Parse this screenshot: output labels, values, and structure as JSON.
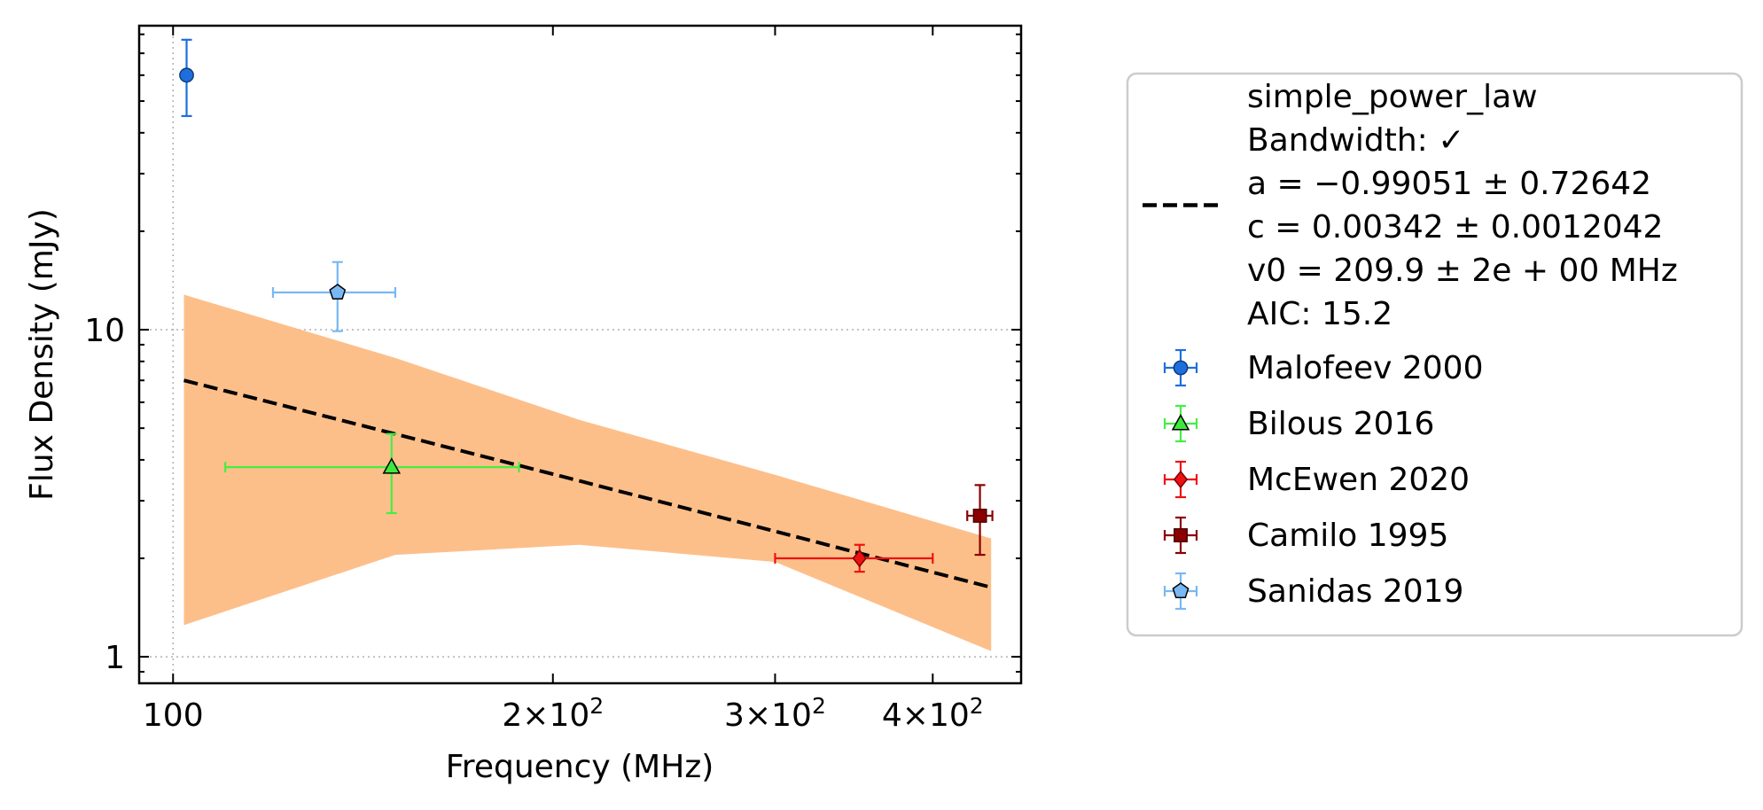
{
  "chart_data": {
    "type": "scatter",
    "xlabel": "Frequency (MHz)",
    "ylabel": "Flux Density (mJy)",
    "x_scale": "log",
    "y_scale": "log",
    "xlim": [
      94,
      470
    ],
    "ylim": [
      0.83,
      85
    ],
    "x_ticks": [
      {
        "value": 100,
        "label": "100"
      },
      {
        "value": 200,
        "label": "2 × 10²"
      },
      {
        "value": 300,
        "label": "3 × 10²"
      },
      {
        "value": 400,
        "label": "4 × 10²"
      }
    ],
    "y_ticks": [
      {
        "value": 1,
        "label": "1"
      },
      {
        "value": 10,
        "label": "10"
      }
    ],
    "grid": "dotted at major ticks",
    "fit": {
      "name": "simple_power_law",
      "legend_lines": [
        "simple_power_law",
        "Bandwidth: ✓",
        "a = −0.99051 ± 0.72642",
        "c = 0.00342 ± 0.0012042",
        "v0 = 209.9 ± 2e + 00 MHz",
        "AIC: 15.2"
      ],
      "color": "#000000",
      "band_color": "#fdbf8a",
      "x_range": [
        102,
        445
      ],
      "line": [
        [
          102,
          7.0
        ],
        [
          150,
          4.8
        ],
        [
          209.9,
          3.45
        ],
        [
          300,
          2.42
        ],
        [
          445,
          1.63
        ]
      ],
      "band_upper": [
        [
          102,
          12.8
        ],
        [
          150,
          8.2
        ],
        [
          209.9,
          5.3
        ],
        [
          300,
          3.6
        ],
        [
          445,
          2.3
        ]
      ],
      "band_lower": [
        [
          102,
          1.25
        ],
        [
          150,
          2.05
        ],
        [
          209.9,
          2.2
        ],
        [
          300,
          1.95
        ],
        [
          445,
          1.04
        ]
      ]
    },
    "series": [
      {
        "name": "Malofeev 2000",
        "marker": "circle",
        "color": "#1e6fdc",
        "edge": "#0d3d7a",
        "err_color": "#1e6fdc",
        "points": [
          {
            "x": 102.5,
            "y": 60,
            "xerr_lo": 0,
            "xerr_hi": 0,
            "yerr_lo": 45,
            "yerr_hi": 77
          }
        ]
      },
      {
        "name": "Bilous 2016",
        "marker": "triangle",
        "color": "#3ee83e",
        "edge": "#000000",
        "err_color": "#44ee44",
        "points": [
          {
            "x": 149,
            "y": 3.8,
            "xerr_lo": 110,
            "xerr_hi": 188,
            "yerr_lo": 2.75,
            "yerr_hi": 4.8
          }
        ]
      },
      {
        "name": "McEwen 2020",
        "marker": "diamond",
        "color": "#ee1111",
        "edge": "#7a0000",
        "err_color": "#ee1111",
        "points": [
          {
            "x": 350,
            "y": 2.0,
            "xerr_lo": 300,
            "xerr_hi": 400,
            "yerr_lo": 1.82,
            "yerr_hi": 2.2
          }
        ]
      },
      {
        "name": "Camilo 1995",
        "marker": "square",
        "color": "#8b0000",
        "edge": "#4a0000",
        "err_color": "#8b0000",
        "points": [
          {
            "x": 436,
            "y": 2.7,
            "xerr_lo": 426,
            "xerr_hi": 446,
            "yerr_lo": 2.05,
            "yerr_hi": 3.35
          }
        ]
      },
      {
        "name": "Sanidas 2019",
        "marker": "pentagon",
        "color": "#79b8f2",
        "edge": "#000000",
        "err_color": "#79b8f2",
        "points": [
          {
            "x": 135,
            "y": 13,
            "xerr_lo": 120,
            "xerr_hi": 150,
            "yerr_lo": 9.9,
            "yerr_hi": 16.1
          }
        ]
      }
    ],
    "legend": {
      "placement": "outside right",
      "entries": [
        "Malofeev 2000",
        "Bilous 2016",
        "McEwen 2020",
        "Camilo 1995",
        "Sanidas 2019"
      ]
    }
  }
}
